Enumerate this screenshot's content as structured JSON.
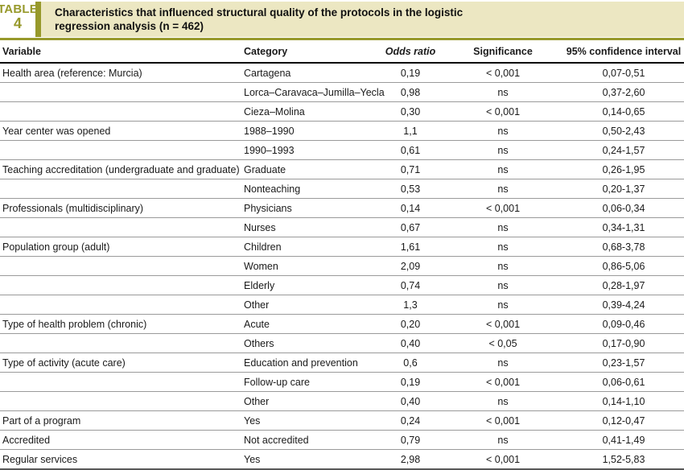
{
  "table_label": {
    "word": "TABLE",
    "number": "4"
  },
  "title": "Characteristics that influenced structural quality of the protocols in the logistic regression analysis (n = 462)",
  "colors": {
    "accent_olive": "#97992b",
    "banner_beige": "#ece7c2",
    "header_underline": "#000000",
    "row_line": "#9a9a9a",
    "bottom_border": "#595959"
  },
  "columns": {
    "variable": "Variable",
    "category": "Category",
    "odds_ratio": "Odds ratio",
    "significance": "Significance",
    "confidence_interval": "95% confidence interval"
  },
  "rows": [
    {
      "variable": "Health area (reference: Murcia)",
      "category": "Cartagena",
      "odds_ratio": "0,19",
      "significance": "< 0,001",
      "ci": "0,07-0,51"
    },
    {
      "variable": "",
      "category": "Lorca–Caravaca–Jumilla–Yecla",
      "odds_ratio": "0,98",
      "significance": "ns",
      "ci": "0,37-2,60"
    },
    {
      "variable": "",
      "category": "Cieza–Molina",
      "odds_ratio": "0,30",
      "significance": "< 0,001",
      "ci": "0,14-0,65"
    },
    {
      "variable": "Year center was opened",
      "category": "1988–1990",
      "odds_ratio": "1,1",
      "significance": "ns",
      "ci": "0,50-2,43"
    },
    {
      "variable": "",
      "category": "1990–1993",
      "odds_ratio": "0,61",
      "significance": "ns",
      "ci": "0,24-1,57"
    },
    {
      "variable": "Teaching accreditation (undergraduate and graduate)",
      "category": "Graduate",
      "odds_ratio": "0,71",
      "significance": "ns",
      "ci": "0,26-1,95"
    },
    {
      "variable": "",
      "category": "Nonteaching",
      "odds_ratio": "0,53",
      "significance": "ns",
      "ci": "0,20-1,37"
    },
    {
      "variable": "Professionals (multidisciplinary)",
      "category": "Physicians",
      "odds_ratio": "0,14",
      "significance": "< 0,001",
      "ci": "0,06-0,34"
    },
    {
      "variable": "",
      "category": "Nurses",
      "odds_ratio": "0,67",
      "significance": "ns",
      "ci": "0,34-1,31"
    },
    {
      "variable": "Population group (adult)",
      "category": "Children",
      "odds_ratio": "1,61",
      "significance": "ns",
      "ci": "0,68-3,78"
    },
    {
      "variable": "",
      "category": "Women",
      "odds_ratio": "2,09",
      "significance": "ns",
      "ci": "0,86-5,06"
    },
    {
      "variable": "",
      "category": "Elderly",
      "odds_ratio": "0,74",
      "significance": "ns",
      "ci": "0,28-1,97"
    },
    {
      "variable": "",
      "category": "Other",
      "odds_ratio": "1,3",
      "significance": "ns",
      "ci": "0,39-4,24"
    },
    {
      "variable": "Type of health problem (chronic)",
      "category": "Acute",
      "odds_ratio": "0,20",
      "significance": "< 0,001",
      "ci": "0,09-0,46"
    },
    {
      "variable": "",
      "category": "Others",
      "odds_ratio": "0,40",
      "significance": "< 0,05",
      "ci": "0,17-0,90"
    },
    {
      "variable": "Type of activity (acute care)",
      "category": "Education and prevention",
      "odds_ratio": "0,6",
      "significance": "ns",
      "ci": "0,23-1,57"
    },
    {
      "variable": "",
      "category": "Follow-up care",
      "odds_ratio": "0,19",
      "significance": "< 0,001",
      "ci": "0,06-0,61"
    },
    {
      "variable": "",
      "category": "Other",
      "odds_ratio": "0,40",
      "significance": "ns",
      "ci": "0,14-1,10"
    },
    {
      "variable": "Part of a program",
      "category": "Yes",
      "odds_ratio": "0,24",
      "significance": "< 0,001",
      "ci": "0,12-0,47"
    },
    {
      "variable": "Accredited",
      "category": "Not accredited",
      "odds_ratio": "0,79",
      "significance": "ns",
      "ci": "0,41-1,49"
    },
    {
      "variable": "Regular services",
      "category": "Yes",
      "odds_ratio": "2,98",
      "significance": "< 0,001",
      "ci": "1,52-5,83"
    }
  ]
}
